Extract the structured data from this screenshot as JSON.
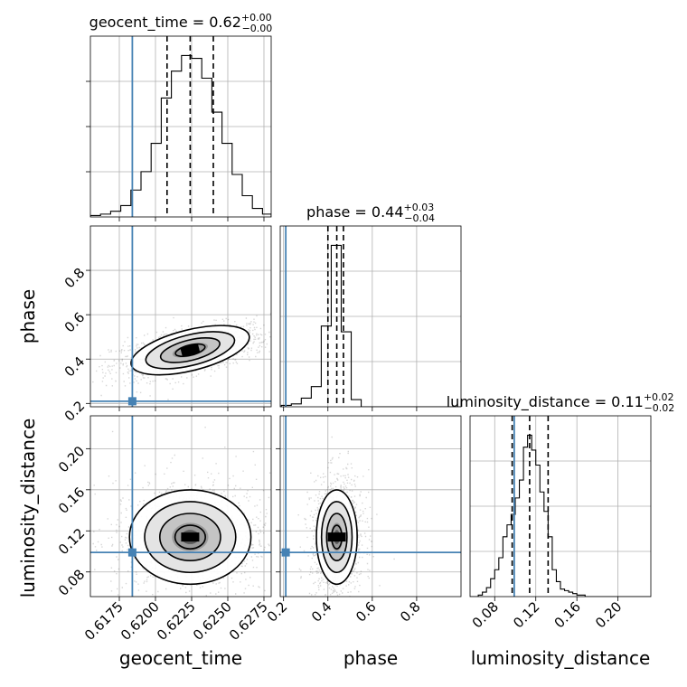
{
  "chart_data": {
    "type": "scatter",
    "kind": "corner-plot",
    "parameters": [
      "geocent_time",
      "phase",
      "luminosity_distance"
    ],
    "truths": {
      "geocent_time": 0.6184,
      "phase": 0.21,
      "luminosity_distance": 0.099
    },
    "truth_color": "#4682b4",
    "titles": [
      {
        "param": "geocent_time",
        "label": "geocent_time = 0.62",
        "sup": "+0.00",
        "sub": "−0.00"
      },
      {
        "param": "phase",
        "label": "phase = 0.44",
        "sup": "+0.03",
        "sub": "−0.04"
      },
      {
        "param": "luminosity_distance",
        "label": "luminosity_distance = 0.11",
        "sup": "+0.02",
        "sub": "−0.02"
      }
    ],
    "axis_labels": {
      "geocent_time": "geocent_time",
      "phase": "phase",
      "luminosity_distance": "luminosity_distance"
    },
    "ranges": {
      "geocent_time": [
        0.6155,
        0.628
      ],
      "phase": [
        0.185,
        1.0
      ],
      "luminosity_distance": [
        0.056,
        0.232
      ]
    },
    "ticks": {
      "geocent_time": [
        0.6175,
        0.62,
        0.6225,
        0.625,
        0.6275
      ],
      "geocent_time_labels": [
        "0.6175",
        "0.6200",
        "0.6225",
        "0.6250",
        "0.6275"
      ],
      "phase": [
        0.2,
        0.4,
        0.6,
        0.8
      ],
      "phase_labels": [
        "0.2",
        "0.4",
        "0.6",
        "0.8"
      ],
      "luminosity_distance": [
        0.08,
        0.12,
        0.16,
        0.2
      ],
      "luminosity_distance_labels": [
        "0.08",
        "0.12",
        "0.16",
        "0.20"
      ]
    },
    "quantiles": {
      "geocent_time": [
        0.6208,
        0.6224,
        0.624
      ],
      "phase": [
        0.4,
        0.44,
        0.47
      ],
      "luminosity_distance": [
        0.097,
        0.114,
        0.132
      ]
    },
    "histograms": {
      "geocent_time": {
        "edges": [
          0.6155,
          0.6162,
          0.6169,
          0.6176,
          0.6183,
          0.619,
          0.6197,
          0.6204,
          0.6211,
          0.6218,
          0.6225,
          0.6232,
          0.6239,
          0.6246,
          0.6253,
          0.626,
          0.6267,
          0.6274,
          0.628
        ],
        "counts": [
          1,
          2,
          4,
          8,
          19,
          32,
          52,
          84,
          103,
          114,
          112,
          98,
          74,
          52,
          30,
          15,
          6,
          2
        ]
      },
      "phase": {
        "edges": [
          0.19,
          0.235,
          0.28,
          0.325,
          0.37,
          0.415,
          0.46,
          0.505,
          0.55,
          0.6,
          1.0
        ],
        "counts": [
          1,
          2,
          6,
          14,
          56,
          112,
          52,
          5,
          0,
          0
        ]
      },
      "luminosity_distance": {
        "edges": [
          0.056,
          0.06,
          0.064,
          0.068,
          0.072,
          0.076,
          0.08,
          0.084,
          0.088,
          0.092,
          0.096,
          0.1,
          0.104,
          0.108,
          0.112,
          0.116,
          0.12,
          0.124,
          0.128,
          0.132,
          0.136,
          0.14,
          0.144,
          0.148,
          0.152,
          0.156,
          0.16,
          0.164,
          0.168,
          0.232
        ],
        "counts": [
          0,
          0,
          1,
          3,
          6,
          12,
          18,
          26,
          40,
          48,
          55,
          66,
          78,
          100,
          108,
          98,
          88,
          70,
          57,
          40,
          18,
          10,
          5,
          4,
          3,
          2,
          1,
          1,
          0
        ]
      }
    },
    "grid": true
  }
}
